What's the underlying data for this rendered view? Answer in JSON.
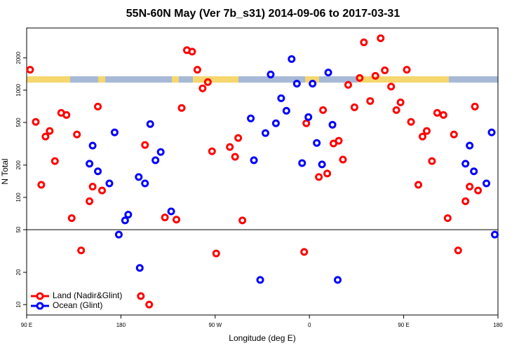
{
  "chart_data": {
    "type": "scatter",
    "title": "55N-60N May (Ver 7b_s31)   2014-09-06 to 2017-03-31",
    "x_label": "Longitude (deg E)",
    "y_label": "N Total",
    "log_y": true,
    "xlim": [
      90,
      540
    ],
    "xticks": [
      {
        "value": 90,
        "label": "90 E"
      },
      180,
      {
        "value": 270,
        "label": "90 W"
      },
      {
        "value": 360,
        "label": "0"
      },
      {
        "value": 450,
        "label": "90 E"
      },
      {
        "value": 540,
        "label": "180"
      }
    ],
    "ylim": [
      8,
      3800
    ],
    "yticks": [
      10,
      20,
      50,
      100,
      200,
      500,
      1000,
      2000
    ],
    "hline": 50,
    "legend": "lower left",
    "series": [
      {
        "name": "Land (Nadir&Glint)",
        "color": "#ff0000",
        "x": [
          93.3,
          98.7,
          104,
          108,
          112,
          117,
          123,
          128,
          133,
          138,
          142,
          150,
          153,
          158,
          162,
          199,
          207,
          203,
          222,
          233,
          238,
          243,
          248,
          253,
          258,
          263,
          267,
          271,
          284,
          289,
          292,
          296,
          355,
          357,
          369,
          373,
          377,
          383,
          388,
          392,
          397,
          403,
          408,
          412,
          418,
          423,
          428,
          432,
          438,
          443,
          447,
          453,
          457,
          464,
          468,
          472,
          477,
          482,
          488,
          492,
          498,
          502,
          509,
          513,
          518,
          521
        ],
        "values": [
          1550,
          506,
          131,
          369,
          416,
          218,
          614,
          587,
          64,
          386,
          32,
          92,
          126,
          703,
          116,
          12,
          10,
          308,
          65,
          62,
          682,
          2360,
          2290,
          1550,
          1040,
          1190,
          269,
          30,
          295,
          239,
          358,
          61,
          31,
          491,
          155,
          652,
          167,
          318,
          337,
          225,
          1120,
          692,
          1300,
          2790,
          792,
          1360,
          3050,
          1530,
          1080,
          652,
          769,
          1550,
          506,
          131,
          369,
          416,
          218,
          614,
          587,
          64,
          386,
          32,
          92,
          126,
          703,
          116
        ]
      },
      {
        "name": "Ocean (Glint)",
        "color": "#0000ff",
        "x": [
          150,
          153,
          158,
          169,
          174,
          178,
          184,
          187,
          197,
          198,
          203,
          208,
          213,
          218,
          228,
          304,
          307,
          313,
          318,
          323,
          328,
          333,
          338,
          343,
          348,
          353,
          359,
          363,
          367,
          372,
          378,
          382,
          387,
          509,
          513,
          517,
          529,
          534,
          537
        ],
        "values": [
          206,
          304,
          175,
          135,
          404,
          45,
          61,
          69,
          155,
          22,
          135,
          483,
          222,
          265,
          74,
          545,
          222,
          17,
          398,
          1400,
          491,
          841,
          642,
          1950,
          1150,
          209,
          561,
          1150,
          322,
          203,
          1460,
          476,
          17,
          206,
          304,
          175,
          135,
          404,
          45
        ]
      }
    ]
  }
}
